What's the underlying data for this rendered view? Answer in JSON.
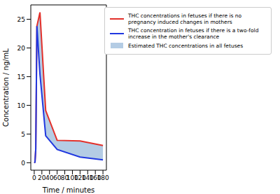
{
  "chart_data": {
    "type": "line",
    "x_label": "Time / minutes",
    "y_label": "Concentration / ng/mL",
    "x": [
      0,
      2,
      4,
      7,
      15,
      30,
      60,
      120,
      180
    ],
    "series": [
      {
        "name": "THC concentrations in fetuses if there is no pregnancy induced changes in mothers",
        "type": "line",
        "color": "#e3302a",
        "values": [
          0,
          0.1,
          2.4,
          23.8,
          26.2,
          9.1,
          3.9,
          3.8,
          3.0
        ]
      },
      {
        "name": "THC concentration in fetuses if there is a two-fold increase in the mother's clearance",
        "type": "line",
        "color": "#2038e0",
        "values": [
          0,
          0.1,
          2.4,
          23.8,
          15.4,
          4.7,
          2.3,
          1.0,
          0.5
        ]
      },
      {
        "name": "Estimated THC concentrations in all fetuses",
        "type": "area",
        "color": "#b4cce4",
        "values": [
          [
            0,
            0
          ],
          [
            0.1,
            0.1
          ],
          [
            2.4,
            2.4
          ],
          [
            23.8,
            23.8
          ],
          [
            15.4,
            26.2
          ],
          [
            4.7,
            9.1
          ],
          [
            2.3,
            3.9
          ],
          [
            1.0,
            3.8
          ],
          [
            0.5,
            3.0
          ]
        ]
      }
    ],
    "xlim": [
      -9,
      189
    ],
    "ylim": [
      -1.3,
      27.5
    ],
    "xticks": [
      0,
      20,
      40,
      60,
      80,
      100,
      120,
      140,
      160,
      180
    ],
    "yticks": [
      0,
      5,
      10,
      15,
      20,
      25
    ],
    "legend": "upper right",
    "grid": false
  }
}
